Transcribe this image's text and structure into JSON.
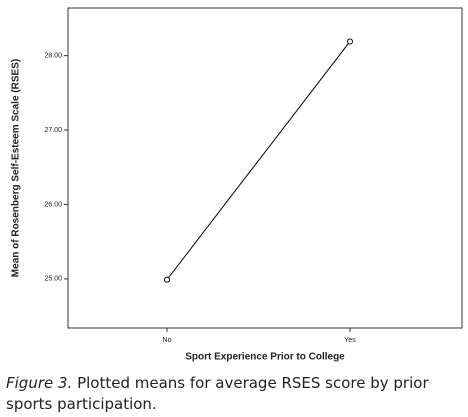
{
  "chart_data": {
    "type": "line",
    "x_label": "Sport Experience Prior to College",
    "y_label": "Mean of Rosenberg Self-Esteem Scale (RSES)",
    "categories": [
      "No",
      "Yes"
    ],
    "series": [
      {
        "name": null,
        "color": "#000000",
        "values": [
          24.99,
          28.19
        ]
      }
    ],
    "ylim": [
      24.34,
      28.64
    ],
    "yticks": [
      {
        "value": 25,
        "label": "25.00"
      },
      {
        "value": 26,
        "label": "26.00"
      },
      {
        "value": 27,
        "label": "27.00"
      },
      {
        "value": 28,
        "label": "28.00"
      }
    ],
    "marker": "open-circle"
  },
  "caption": {
    "label": "Figure 3.",
    "text": "Plotted means for average RSES score by prior sports participation."
  }
}
